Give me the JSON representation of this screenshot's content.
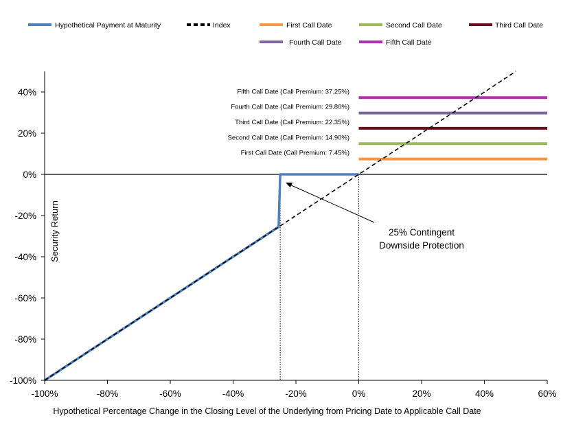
{
  "chart_data": {
    "type": "line",
    "title": "",
    "xlabel": "Hypothetical Percentage Change in the Closing Level of the Underlying from Pricing Date to Applicable Call Date",
    "ylabel": "Security Return",
    "xlim": [
      -100,
      60
    ],
    "ylim": [
      -100,
      50
    ],
    "x_ticks": [
      -100,
      -80,
      -60,
      -40,
      -20,
      0,
      20,
      40,
      60
    ],
    "y_ticks": [
      -100,
      -80,
      -60,
      -40,
      -20,
      0,
      20,
      40
    ],
    "x_tick_labels": [
      "-100%",
      "-80%",
      "-60%",
      "-40%",
      "-20%",
      "0%",
      "20%",
      "40%",
      "60%"
    ],
    "y_tick_labels": [
      "-100%",
      "-80%",
      "-60%",
      "-40%",
      "-20%",
      "0%",
      "20%",
      "40%"
    ],
    "legend": {
      "position": "top",
      "items": [
        {
          "label": "Hypothetical Payment at Maturity",
          "color": "#4F81BD",
          "style": "solid"
        },
        {
          "label": "Index",
          "color": "#000000",
          "style": "dashed"
        },
        {
          "label": "First Call Date",
          "color": "#F79646",
          "style": "solid"
        },
        {
          "label": "Second Call Date",
          "color": "#9BBB59",
          "style": "solid"
        },
        {
          "label": "Third Call Date",
          "color": "#6B0F16",
          "style": "solid"
        },
        {
          "label": "Fourth Call Date",
          "color": "#8064A2",
          "style": "solid"
        },
        {
          "label": "Fifth Call Date",
          "color": "#B030B0",
          "style": "solid"
        }
      ]
    },
    "series": [
      {
        "name": "Hypothetical Payment at Maturity",
        "color": "#4F81BD",
        "x": [
          -100,
          -25.5,
          -25,
          0
        ],
        "y": [
          -100,
          -25.5,
          0,
          0
        ]
      },
      {
        "name": "Index",
        "color": "#000000",
        "dashed": true,
        "x": [
          -100,
          50
        ],
        "y": [
          -100,
          50
        ]
      },
      {
        "name": "First Call Date",
        "color": "#F79646",
        "x": [
          0,
          60
        ],
        "y": [
          7.45,
          7.45
        ]
      },
      {
        "name": "Second Call Date",
        "color": "#9BBB59",
        "x": [
          0,
          60
        ],
        "y": [
          14.9,
          14.9
        ]
      },
      {
        "name": "Third Call Date",
        "color": "#6B0F16",
        "x": [
          0,
          60
        ],
        "y": [
          22.35,
          22.35
        ]
      },
      {
        "name": "Fourth Call Date",
        "color": "#8064A2",
        "x": [
          0,
          60
        ],
        "y": [
          29.8,
          29.8
        ]
      },
      {
        "name": "Fifth Call Date",
        "color": "#B030B0",
        "x": [
          0,
          60
        ],
        "y": [
          37.25,
          37.25
        ]
      }
    ],
    "call_labels": [
      {
        "text": "First Call Date (Call Premium: 7.45%)",
        "y": 7.45
      },
      {
        "text": "Second Call Date (Call Premium: 14.90%)",
        "y": 14.9
      },
      {
        "text": "Third Call Date (Call Premium: 22.35%)",
        "y": 22.35
      },
      {
        "text": "Fourth Call Date (Call Premium: 29.80%)",
        "y": 29.8
      },
      {
        "text": "Fifth Call Date (Call Premium: 37.25%)",
        "y": 37.25
      }
    ],
    "reference_lines": [
      {
        "axis": "x",
        "value": -25,
        "style": "dotted"
      },
      {
        "axis": "x",
        "value": 0,
        "style": "dotted"
      },
      {
        "axis": "y",
        "value": 0,
        "style": "solid"
      }
    ],
    "annotations": [
      {
        "text_lines": [
          "25% Contingent",
          "Downside Protection"
        ],
        "arrow_to": [
          -25,
          -4
        ]
      }
    ],
    "grid": false
  }
}
